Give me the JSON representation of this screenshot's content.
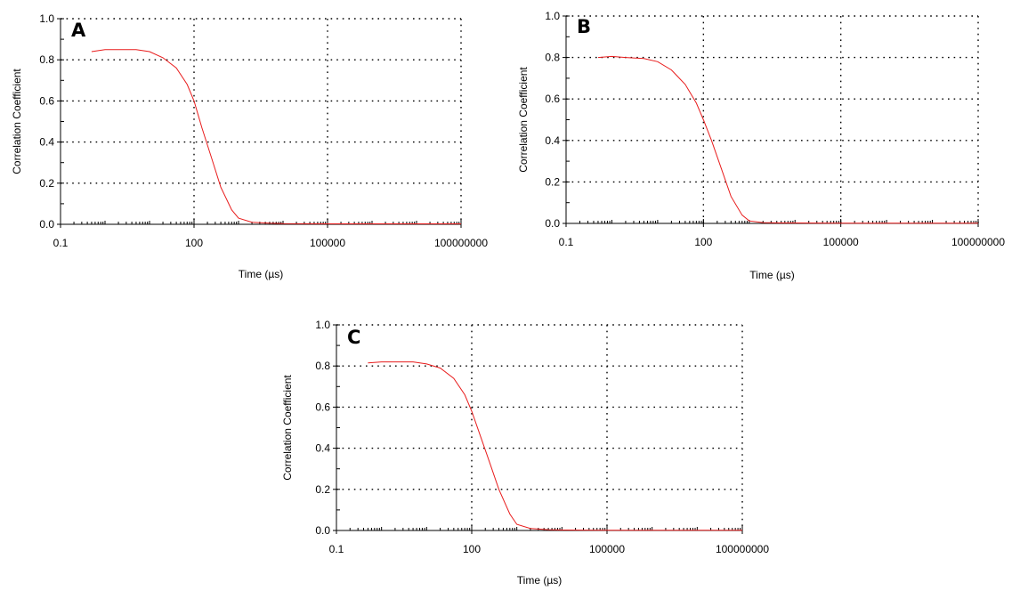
{
  "chart_data": [
    {
      "type": "line",
      "panel_label": "A",
      "xlabel": "Time (µs)",
      "ylabel": "Correlation Coefficient",
      "x_scale": "log",
      "xlim": [
        0.1,
        100000000
      ],
      "ylim": [
        0.0,
        1.0
      ],
      "x_ticks": [
        "0.1",
        "100",
        "100000",
        "100000000"
      ],
      "y_ticks": [
        "0.0",
        "0.2",
        "0.4",
        "0.6",
        "0.8",
        "1.0"
      ],
      "grid": true,
      "series": [
        {
          "color": "#e81c1c",
          "x": [
            0.5,
            1,
            2,
            5,
            10,
            20,
            40,
            70,
            100,
            150,
            250,
            400,
            700,
            1000,
            2000,
            5000,
            10000,
            100000,
            1000000,
            100000000
          ],
          "y": [
            0.84,
            0.85,
            0.85,
            0.85,
            0.84,
            0.81,
            0.76,
            0.68,
            0.6,
            0.47,
            0.32,
            0.18,
            0.07,
            0.03,
            0.01,
            0.005,
            0.003,
            0.002,
            0.002,
            0.002
          ]
        }
      ]
    },
    {
      "type": "line",
      "panel_label": "B",
      "xlabel": "Time (µs)",
      "ylabel": "Correlation Coefficient",
      "x_scale": "log",
      "xlim": [
        0.1,
        100000000
      ],
      "ylim": [
        0.0,
        1.0
      ],
      "x_ticks": [
        "0.1",
        "100",
        "100000",
        "100000000"
      ],
      "y_ticks": [
        "0.0",
        "0.2",
        "0.4",
        "0.6",
        "0.8",
        "1.0"
      ],
      "grid": true,
      "series": [
        {
          "color": "#e81c1c",
          "x": [
            0.5,
            1,
            2,
            5,
            10,
            20,
            40,
            70,
            100,
            150,
            250,
            400,
            700,
            1000,
            2000,
            5000,
            10000,
            100000,
            1000000,
            100000000
          ],
          "y": [
            0.8,
            0.805,
            0.8,
            0.795,
            0.78,
            0.74,
            0.67,
            0.58,
            0.5,
            0.4,
            0.26,
            0.13,
            0.04,
            0.012,
            0.004,
            0.002,
            0.002,
            0.001,
            0.001,
            0.001
          ]
        }
      ]
    },
    {
      "type": "line",
      "panel_label": "C",
      "xlabel": "Time (µs)",
      "ylabel": "Correlation Coefficient",
      "x_scale": "log",
      "xlim": [
        0.1,
        100000000
      ],
      "ylim": [
        0.0,
        1.0
      ],
      "x_ticks": [
        "0.1",
        "100",
        "100000",
        "100000000"
      ],
      "y_ticks": [
        "0.0",
        "0.2",
        "0.4",
        "0.6",
        "0.8",
        "1.0"
      ],
      "grid": true,
      "series": [
        {
          "color": "#e81c1c",
          "x": [
            0.5,
            1,
            2,
            5,
            10,
            20,
            40,
            70,
            100,
            150,
            250,
            400,
            700,
            1000,
            2000,
            5000,
            10000,
            100000,
            1000000,
            100000000
          ],
          "y": [
            0.815,
            0.82,
            0.82,
            0.82,
            0.81,
            0.79,
            0.74,
            0.66,
            0.58,
            0.47,
            0.33,
            0.2,
            0.08,
            0.03,
            0.01,
            0.004,
            0.002,
            0.001,
            0.001,
            0.001
          ]
        }
      ]
    }
  ]
}
